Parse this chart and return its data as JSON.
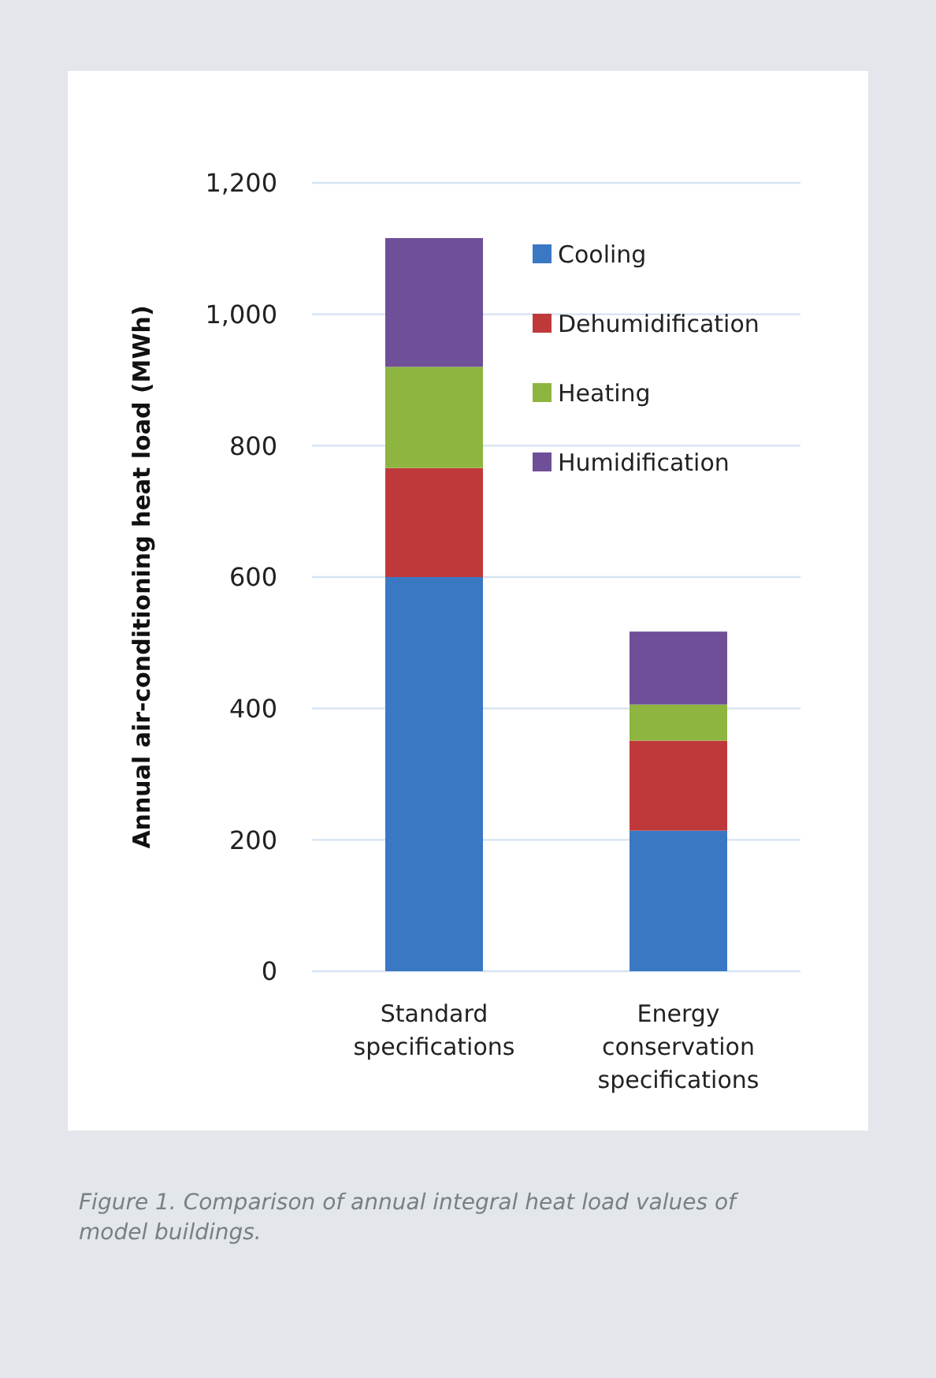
{
  "chart_data": {
    "type": "bar",
    "stacked": true,
    "ylabel": "Annual air-conditioning heat load (MWh)",
    "categories": [
      "Standard specifications",
      "Energy conservation specifications"
    ],
    "series": [
      {
        "name": "Cooling",
        "color": "#3a78c4",
        "values": [
          600,
          214
        ]
      },
      {
        "name": "Dehumidification",
        "color": "#c0393a",
        "values": [
          166,
          137
        ]
      },
      {
        "name": "Heating",
        "color": "#8db53f",
        "values": [
          154,
          55
        ]
      },
      {
        "name": "Humidification",
        "color": "#6f4f98",
        "values": [
          196,
          111
        ]
      }
    ],
    "ylim": [
      0,
      1200
    ],
    "yticks": [
      {
        "value": 0,
        "label": "0"
      },
      {
        "value": 200,
        "label": "200"
      },
      {
        "value": 400,
        "label": "400"
      },
      {
        "value": 600,
        "label": "600"
      },
      {
        "value": 800,
        "label": "800"
      },
      {
        "value": 1000,
        "label": "1,000"
      },
      {
        "value": 1200,
        "label": "1,200"
      }
    ],
    "grid": "y",
    "legend": "top right",
    "annotations": [
      "Figure 1. Comparison of annual integral heat load values of model buildings."
    ]
  }
}
